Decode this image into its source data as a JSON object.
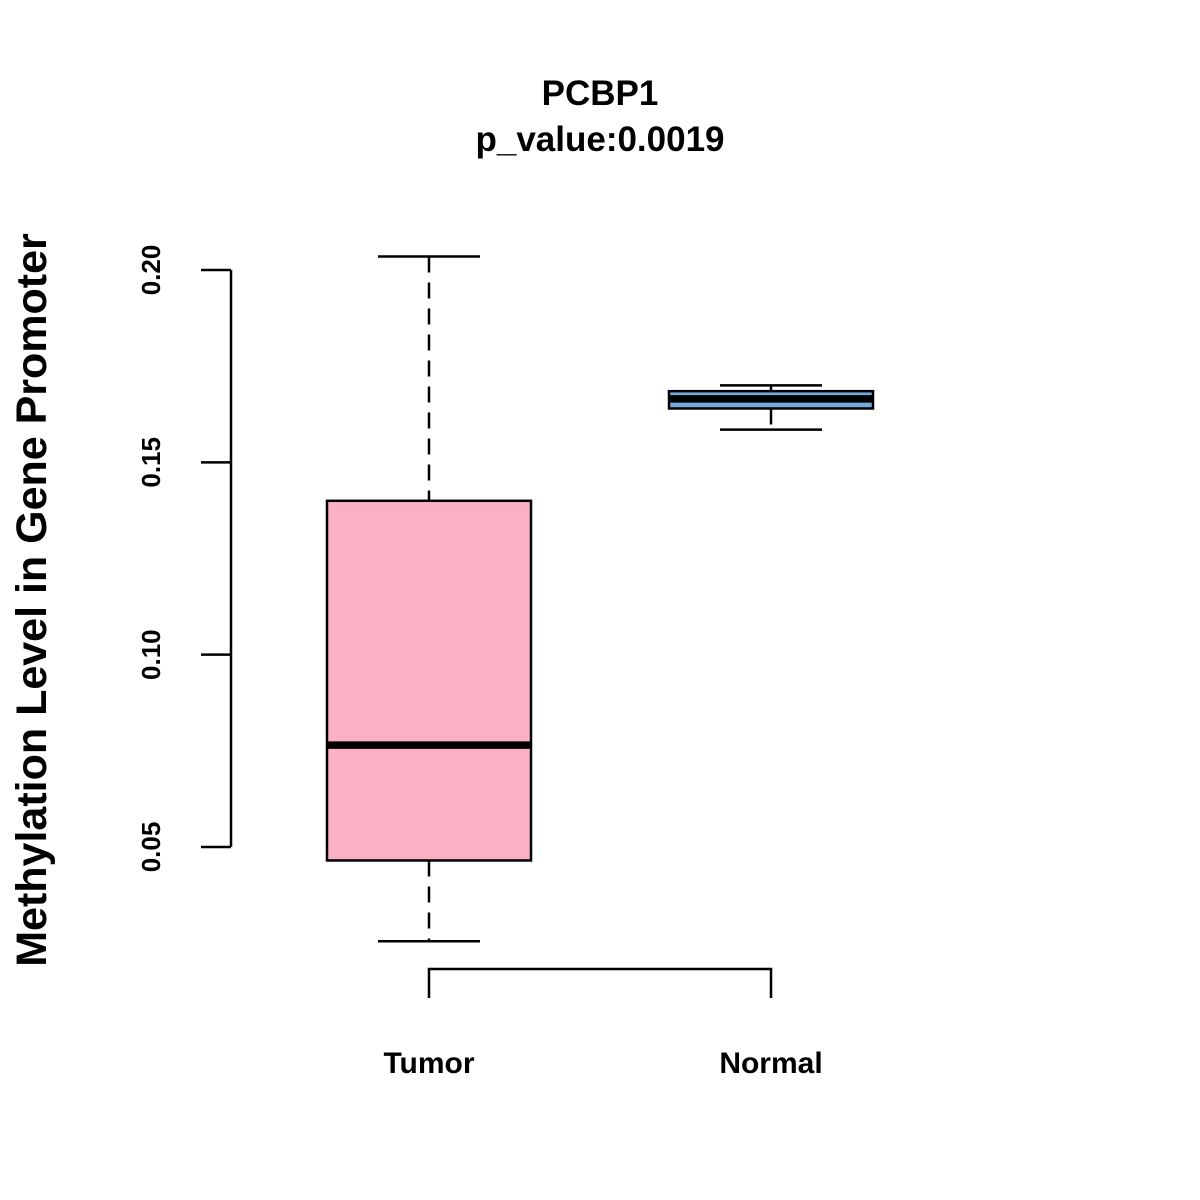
{
  "chart_data": {
    "type": "boxplot",
    "title": "PCBP1",
    "subtitle": "p_value:0.0019",
    "xlabel": "",
    "ylabel": "Methylation Level in Gene Promoter",
    "ylim": [
      0.05,
      0.2
    ],
    "yticks": [
      0.05,
      0.1,
      0.15,
      0.2
    ],
    "ytick_labels": [
      "0.05",
      "0.10",
      "0.15",
      "0.20"
    ],
    "grid": false,
    "comparison_bracket": true,
    "series": [
      {
        "name": "Tumor",
        "color": "#FBB1C3",
        "min": 0.0255,
        "q1": 0.0465,
        "median": 0.0765,
        "q3": 0.14,
        "max": 0.2035
      },
      {
        "name": "Normal",
        "color": "#74A9DC",
        "min": 0.1585,
        "q1": 0.164,
        "median": 0.1665,
        "q3": 0.1685,
        "max": 0.17
      }
    ]
  }
}
